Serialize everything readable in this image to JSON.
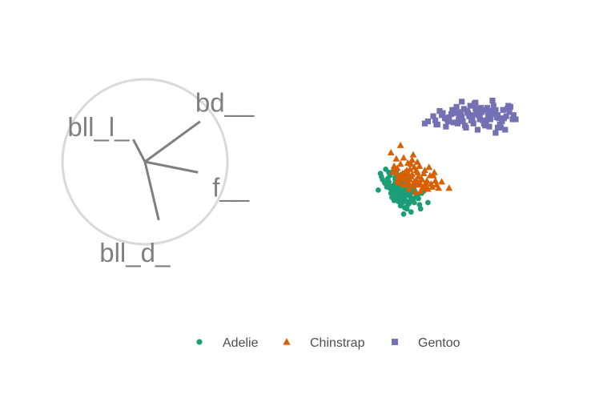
{
  "chart_data": {
    "type": "scatter",
    "title": "",
    "legend_position": "bottom",
    "grid": false,
    "axis_labels": [
      "bll_l_",
      "bd__",
      "f__",
      "bll_d_"
    ],
    "axis_directions": [
      [
        -0.55,
        1.05
      ],
      [
        2.6,
        1.9
      ],
      [
        2.5,
        -0.5
      ],
      [
        0.65,
        -2.75
      ]
    ],
    "series": [
      {
        "name": "Adelie",
        "color": "#1b9e77",
        "marker": "circle",
        "x": [
          -0.3,
          0.2,
          0.6,
          -0.1,
          0.4,
          0.9,
          1.4,
          0.8,
          1.6,
          2.0,
          2.5,
          1.1,
          0.3,
          -0.5,
          0.7,
          1.3,
          1.9,
          2.6,
          0.5,
          1.0,
          1.8,
          2.3,
          3.0,
          3.6,
          2.9,
          1.5,
          0.9,
          0.4,
          1.7,
          2.4,
          3.1,
          1.2,
          0.6,
          2.1,
          2.8,
          1.6,
          2.2,
          1.0,
          0.2,
          1.4,
          3.4,
          2.6,
          1.9,
          0.8,
          -0.2,
          0.1,
          1.1,
          2.0,
          2.7,
          1.3,
          0.6,
          1.8,
          2.4,
          0.9,
          1.5,
          3.3,
          2.2,
          1.7,
          0.5,
          1.2,
          2.9,
          3.8,
          4.2,
          3.5,
          2.0,
          1.4,
          0.7,
          2.5,
          1.1,
          1.9,
          2.6,
          3.2,
          0.3,
          1.6,
          2.3,
          1.0,
          1.8,
          2.1,
          2.8,
          1.5,
          0.8,
          1.3,
          2.0,
          2.4,
          1.7,
          0.9,
          1.2,
          2.6,
          3.0,
          1.4,
          1.9,
          2.2,
          1.1,
          1.6,
          2.5,
          0.6,
          1.3,
          2.1
        ],
        "y": [
          0.8,
          1.2,
          0.6,
          0.2,
          -0.2,
          1.0,
          0.4,
          -0.6,
          -0.1,
          0.5,
          -0.4,
          0.2,
          -0.5,
          -0.8,
          -1.1,
          -0.8,
          -1.4,
          -1.0,
          0.0,
          -0.3,
          -0.7,
          -1.2,
          -1.5,
          -1.1,
          -2.0,
          -1.6,
          -1.2,
          0.3,
          0.7,
          0.2,
          -0.3,
          0.9,
          0.6,
          0.0,
          -0.6,
          -2.3,
          -2.6,
          -1.8,
          -0.2,
          -0.4,
          -2.2,
          -2.9,
          -3.1,
          -1.5,
          0.5,
          -0.1,
          0.4,
          -0.9,
          -1.8,
          -1.3,
          -0.4,
          0.1,
          -0.5,
          -0.9,
          -0.7,
          -1.6,
          -1.9,
          -1.0,
          0.9,
          0.5,
          -0.8,
          -0.9,
          -2.0,
          -2.6,
          -2.5,
          -1.9,
          -0.7,
          -1.4,
          -0.1,
          -1.7,
          -0.6,
          -1.3,
          -0.3,
          0.3,
          -0.2,
          -1.4,
          -2.0,
          -1.1,
          -0.9,
          -0.5,
          -0.9,
          -1.2,
          -1.5,
          -2.1,
          -1.3,
          -0.8,
          -0.6,
          -1.6,
          -1.0,
          -1.7,
          -0.2,
          -2.4,
          -0.4,
          -1.1,
          -0.8,
          -0.6,
          -0.1,
          -0.5
        ]
      },
      {
        "name": "Chinstrap",
        "color": "#d95f02",
        "marker": "triangle",
        "x": [
          0.7,
          1.2,
          1.6,
          1.0,
          1.9,
          2.3,
          2.8,
          3.2,
          2.5,
          2.0,
          1.4,
          0.9,
          1.7,
          2.6,
          3.1,
          3.6,
          4.0,
          4.4,
          3.7,
          3.3,
          2.9,
          2.2,
          1.8,
          1.3,
          2.4,
          3.0,
          3.5,
          4.2,
          4.9,
          5.5,
          4.6,
          3.9,
          3.4,
          2.7,
          2.1,
          1.5,
          2.8,
          3.8,
          4.3,
          1.1,
          1.9,
          2.5,
          3.2,
          4.7,
          5.2,
          3.6,
          2.3,
          1.6,
          2.9,
          4.1,
          4.8,
          3.0,
          2.0,
          3.5,
          6.2,
          1.5,
          2.6,
          3.9,
          4.5,
          2.2,
          3.1,
          1.8,
          2.4,
          4.0,
          3.3,
          2.7,
          5.0,
          1.3
        ],
        "y": [
          2.8,
          2.2,
          3.5,
          1.5,
          2.3,
          1.8,
          2.6,
          1.9,
          1.2,
          0.9,
          0.6,
          1.0,
          0.4,
          0.5,
          1.1,
          0.3,
          -0.1,
          0.6,
          -0.6,
          -0.3,
          0.0,
          0.1,
          0.8,
          1.3,
          -0.7,
          -1.0,
          -0.2,
          -0.7,
          0.1,
          0.0,
          -0.5,
          1.1,
          1.5,
          2.1,
          0.7,
          0.3,
          -0.4,
          0.8,
          1.4,
          0.9,
          -0.3,
          0.2,
          0.9,
          0.6,
          -0.6,
          0.2,
          0.8,
          1.7,
          1.4,
          0.1,
          0.9,
          0.0,
          0.3,
          -0.9,
          -0.6,
          -0.1,
          1.7,
          -0.4,
          -0.2,
          1.1,
          0.2,
          0.7,
          -0.2,
          -0.5,
          0.5,
          0.7,
          -0.3,
          0.1
        ]
      },
      {
        "name": "Gentoo",
        "color": "#7570b3",
        "marker": "square",
        "x": [
          4.2,
          4.7,
          5.1,
          5.6,
          6.0,
          6.5,
          7.0,
          7.4,
          7.9,
          8.3,
          8.8,
          9.2,
          9.7,
          10.1,
          10.6,
          11.0,
          11.4,
          11.9,
          12.3,
          5.3,
          5.9,
          6.4,
          6.9,
          7.5,
          8.0,
          8.6,
          9.1,
          9.6,
          10.2,
          10.7,
          11.2,
          11.7,
          12.2,
          4.9,
          5.8,
          6.6,
          7.3,
          8.2,
          9.0,
          9.9,
          10.8,
          11.6,
          6.2,
          7.1,
          7.8,
          8.7,
          9.5,
          10.4,
          11.3,
          7.6,
          8.4,
          9.3,
          10.0,
          10.9,
          8.1,
          9.4,
          10.5,
          7.2,
          8.5,
          9.8,
          6.8,
          11.5,
          12.0,
          5.5,
          10.3,
          9.1,
          8.9,
          7.7,
          10.6,
          6.1,
          11.8,
          9.6,
          8.3,
          7.4,
          10.1,
          12.5,
          5.0,
          9.2,
          7.9,
          11.1,
          8.7,
          10.8,
          6.7,
          9.9,
          3.9
        ],
        "y": [
          5.8,
          6.3,
          5.5,
          6.6,
          6.0,
          6.9,
          5.6,
          6.2,
          6.8,
          5.9,
          6.5,
          7.1,
          5.7,
          6.3,
          6.9,
          5.5,
          6.1,
          6.7,
          6.4,
          6.8,
          5.3,
          6.5,
          7.2,
          5.8,
          6.6,
          7.5,
          6.0,
          5.4,
          6.8,
          6.2,
          5.8,
          7.0,
          6.0,
          5.9,
          6.1,
          5.7,
          6.7,
          7.3,
          6.4,
          6.6,
          5.2,
          6.3,
          6.2,
          6.0,
          5.2,
          7.0,
          5.6,
          7.3,
          6.9,
          7.0,
          6.0,
          6.7,
          5.3,
          6.1,
          6.3,
          5.9,
          6.5,
          6.4,
          5.6,
          7.1,
          6.6,
          5.0,
          7.2,
          6.4,
          7.8,
          6.2,
          5.0,
          5.4,
          4.7,
          5.8,
          7.3,
          6.9,
          6.4,
          7.7,
          6.0,
          6.0,
          5.5,
          6.8,
          6.7,
          5.2,
          7.6,
          6.4,
          6.9,
          6.2,
          5.6
        ]
      }
    ]
  },
  "legend": {
    "items": [
      {
        "label": "Adelie",
        "color": "#1b9e77",
        "marker": "circle"
      },
      {
        "label": "Chinstrap",
        "color": "#d95f02",
        "marker": "triangle"
      },
      {
        "label": "Gentoo",
        "color": "#7570b3",
        "marker": "square"
      }
    ]
  },
  "axis_guide": {
    "circle_color": "#d9d9d9",
    "line_color": "#7f7f7f"
  }
}
